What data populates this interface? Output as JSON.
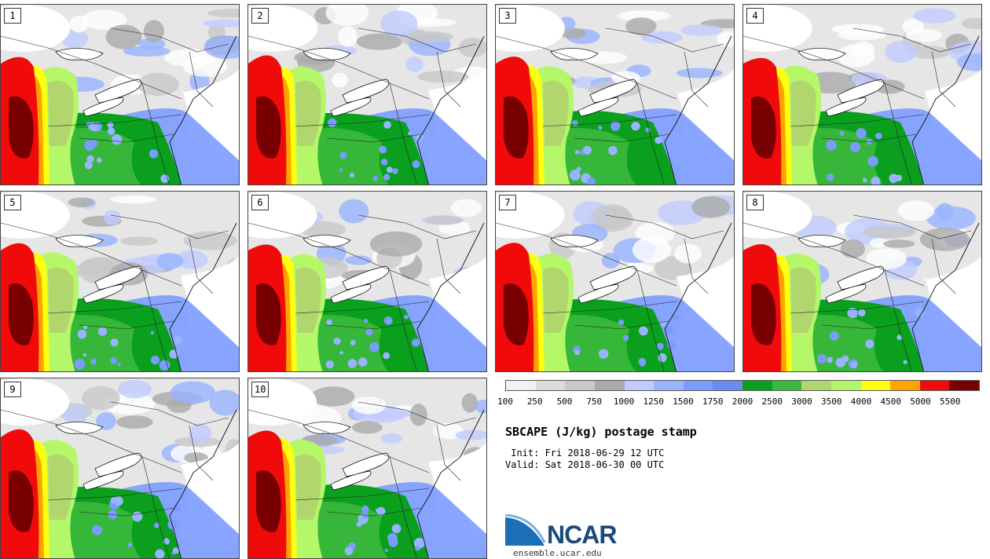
{
  "panels": [
    {
      "label": "1"
    },
    {
      "label": "2"
    },
    {
      "label": "3"
    },
    {
      "label": "4"
    },
    {
      "label": "5"
    },
    {
      "label": "6"
    },
    {
      "label": "7"
    },
    {
      "label": "8"
    },
    {
      "label": "9"
    },
    {
      "label": "10"
    }
  ],
  "colorbar": {
    "ticks": [
      "100",
      "250",
      "500",
      "750",
      "1000",
      "1250",
      "1500",
      "1750",
      "2000",
      "2500",
      "3000",
      "3500",
      "4000",
      "4500",
      "5000",
      "5500"
    ],
    "colors": [
      "#f2f2f2",
      "#dcdcdc",
      "#c8c8c8",
      "#aaaaaa",
      "#c0ccff",
      "#99b4ff",
      "#7b9cff",
      "#6b8af2",
      "#0aa01e",
      "#3cb93c",
      "#b2d66e",
      "#b4f86a",
      "#ffff10",
      "#ffa300",
      "#f00a0a",
      "#780000"
    ]
  },
  "title": "SBCAPE (J/kg) postage stamp",
  "init": " Init: Fri 2018-06-29 12 UTC",
  "valid": "Valid: Sat 2018-06-30 00 UTC",
  "logo": {
    "text": "NCAR",
    "site": "ensemble.ucar.edu",
    "brand_color": "#1a5c9a"
  }
}
